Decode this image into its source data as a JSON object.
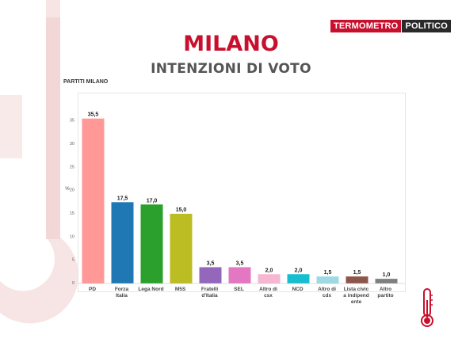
{
  "brand": {
    "part1": "TERMOMETRO",
    "part2": "POLITICO"
  },
  "title": "MILANO",
  "subtitle": "INTENZIONI DI VOTO",
  "chart_label": "PARTITI MILANO",
  "chart_data": {
    "type": "bar",
    "title": "PARTITI",
    "xlabel": "",
    "ylabel": "%",
    "ylim": [
      0,
      37.5
    ],
    "yticks": [
      0,
      5,
      10,
      15,
      20,
      25,
      30,
      35
    ],
    "grid": false,
    "categories": [
      "PD",
      "Forza Italia",
      "Lega Nord",
      "M5S",
      "Fratelli d'Italia",
      "SEL",
      "Altro di csx",
      "NCD",
      "Altro di cdx",
      "Lista civic a indipend ente",
      "Altro partito"
    ],
    "category_lines": [
      [
        "PD"
      ],
      [
        "Forza",
        "Italia"
      ],
      [
        "Lega Nord"
      ],
      [
        "M5S"
      ],
      [
        "Fratelli",
        "d'Italia"
      ],
      [
        "SEL"
      ],
      [
        "Altro di",
        "csx"
      ],
      [
        "NCD"
      ],
      [
        "Altro di",
        "cdx"
      ],
      [
        "Lista civic",
        "a indipend",
        "ente"
      ],
      [
        "Altro",
        "partito"
      ]
    ],
    "values": [
      35.5,
      17.5,
      17.0,
      15.0,
      3.5,
      3.5,
      2.0,
      2.0,
      1.5,
      1.5,
      1.0
    ],
    "value_labels": [
      "35,5",
      "17,5",
      "17,0",
      "15,0",
      "3,5",
      "3,5",
      "2,0",
      "2,0",
      "1,5",
      "1,5",
      "1,0"
    ],
    "colors": [
      "#ff9896",
      "#1f77b4",
      "#2ca02c",
      "#bcbd22",
      "#9467bd",
      "#e377c2",
      "#f7b6d2",
      "#17becf",
      "#9edae5",
      "#8c564b",
      "#7f7f7f"
    ]
  },
  "colors": {
    "accent": "#c8102e",
    "background_shape": "#f8e3e3"
  },
  "icons": {
    "logo": "termometro-logo",
    "thermometer": "thermometer-icon"
  }
}
